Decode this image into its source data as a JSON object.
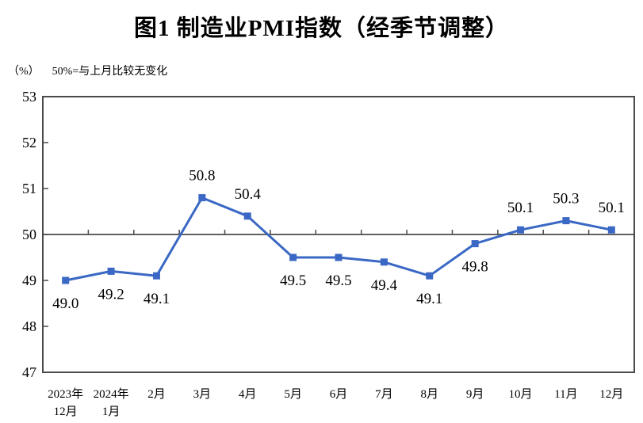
{
  "chart_data": {
    "type": "line",
    "title": "图1 制造业PMI指数（经季节调整）",
    "unit_label": "（%）",
    "note": "50%=与上月比较无变化",
    "categories": [
      [
        "2023年",
        "12月"
      ],
      [
        "2024年",
        "1月"
      ],
      [
        "2月"
      ],
      [
        "3月"
      ],
      [
        "4月"
      ],
      [
        "5月"
      ],
      [
        "6月"
      ],
      [
        "7月"
      ],
      [
        "8月"
      ],
      [
        "9月"
      ],
      [
        "10月"
      ],
      [
        "11月"
      ],
      [
        "12月"
      ]
    ],
    "series": [
      {
        "name": "制造业PMI",
        "values": [
          49.0,
          49.2,
          49.1,
          50.8,
          50.4,
          49.5,
          49.5,
          49.4,
          49.1,
          49.8,
          50.1,
          50.3,
          50.1
        ],
        "data_labels": [
          "49.0",
          "49.2",
          "49.1",
          "50.8",
          "50.4",
          "49.5",
          "49.5",
          "49.4",
          "49.1",
          "49.8",
          "50.1",
          "50.3",
          "50.1"
        ]
      }
    ],
    "ylim": [
      47,
      53
    ],
    "ytick_step": 1,
    "ytick_labels": [
      "47",
      "48",
      "49",
      "50",
      "51",
      "52",
      "53"
    ],
    "reference_line": 50,
    "grid": false,
    "legend": "none",
    "line_color": "#3A68C4",
    "marker_color": "#3A68C4",
    "axis_color": "#4a4a4a",
    "label_color": "#000000"
  }
}
